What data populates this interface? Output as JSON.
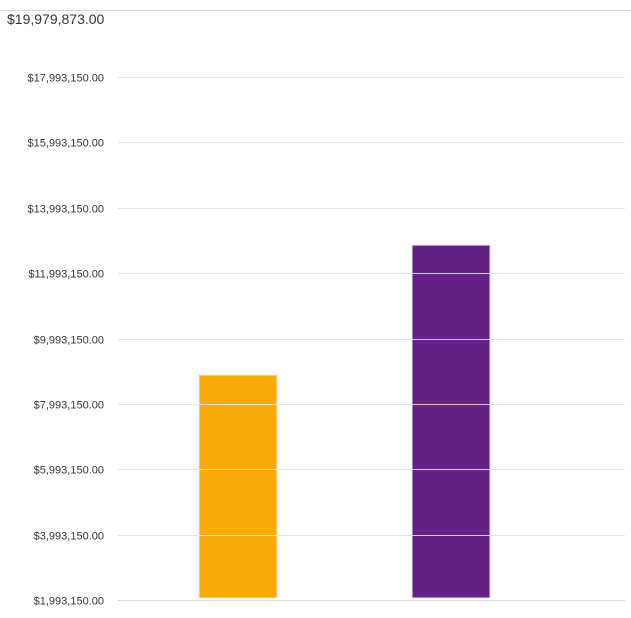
{
  "header": {
    "total_value": "$19,979,873.00"
  },
  "chart_data": {
    "type": "bar",
    "title": "",
    "xlabel": "",
    "ylabel": "",
    "categories": [
      "",
      ""
    ],
    "values": [
      8875000,
      12850000
    ],
    "colors": [
      "#f8ab0b",
      "#632087"
    ],
    "ylim": [
      1993150,
      17993150
    ],
    "yticks": [
      1993150,
      3993150,
      5993150,
      7993150,
      9993150,
      11993150,
      13993150,
      15993150,
      17993150
    ],
    "ytick_labels": [
      "$1,993,150.00",
      "$3,993,150.00",
      "$5,993,150.00",
      "$7,993,150.00",
      "$9,993,150.00",
      "$11,993,150.00",
      "$13,993,150.00",
      "$15,993,150.00",
      "$17,993,150.00"
    ],
    "grid": true,
    "legend": "none"
  }
}
